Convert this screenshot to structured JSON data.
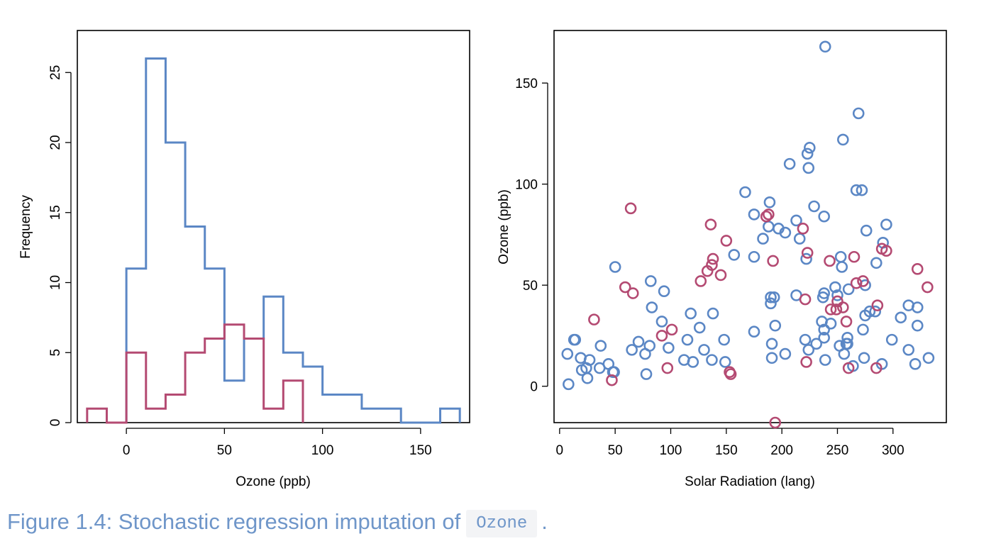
{
  "colors": {
    "observed": "#5b87c5",
    "imputed": "#b44a72",
    "caption": "#6f96c9"
  },
  "caption": {
    "prefix": "Figure 1.4: Stochastic regression imputation of",
    "code": "Ozone",
    "suffix": "."
  },
  "chart_data": [
    {
      "type": "histogram",
      "xlabel": "Ozone (ppb)",
      "ylabel": "Frequency",
      "xticks": [
        0,
        50,
        100,
        150
      ],
      "yticks": [
        0,
        5,
        10,
        15,
        20,
        25
      ],
      "xlim": [
        -25,
        175
      ],
      "ylim": [
        0,
        28
      ],
      "series": [
        {
          "color": "observed",
          "edges": [
            0,
            10,
            20,
            30,
            40,
            50,
            60,
            70,
            80,
            90,
            100,
            110,
            120,
            130,
            140,
            150,
            160,
            170
          ],
          "counts": [
            11,
            26,
            20,
            14,
            11,
            3,
            6,
            9,
            5,
            4,
            2,
            2,
            1,
            1,
            0,
            0,
            1
          ]
        },
        {
          "color": "imputed",
          "edges": [
            -20,
            -10,
            0,
            10,
            20,
            30,
            40,
            50,
            60,
            70,
            80,
            90
          ],
          "counts": [
            1,
            0,
            5,
            1,
            2,
            5,
            6,
            7,
            6,
            1,
            3
          ]
        }
      ]
    },
    {
      "type": "scatter",
      "xlabel": "Solar Radiation (lang)",
      "ylabel": "Ozone (ppb)",
      "xticks": [
        0,
        50,
        100,
        150,
        200,
        250,
        300
      ],
      "yticks": [
        0,
        50,
        100,
        150
      ],
      "xlim": [
        -5,
        348
      ],
      "ylim": [
        -18,
        176
      ],
      "series": [
        {
          "color": "observed",
          "points": [
            [
              7,
              16
            ],
            [
              8,
              1
            ],
            [
              13,
              23
            ],
            [
              14,
              23
            ],
            [
              19,
              14
            ],
            [
              20,
              8
            ],
            [
              24,
              9
            ],
            [
              25,
              4
            ],
            [
              27,
              13
            ],
            [
              36,
              9
            ],
            [
              37,
              20
            ],
            [
              44,
              11
            ],
            [
              48,
              7
            ],
            [
              49,
              7
            ],
            [
              50,
              59
            ],
            [
              65,
              18
            ],
            [
              71,
              22
            ],
            [
              77,
              16
            ],
            [
              78,
              6
            ],
            [
              81,
              20
            ],
            [
              82,
              52
            ],
            [
              83,
              39
            ],
            [
              92,
              32
            ],
            [
              94,
              47
            ],
            [
              98,
              19
            ],
            [
              112,
              13
            ],
            [
              115,
              23
            ],
            [
              118,
              36
            ],
            [
              120,
              12
            ],
            [
              126,
              29
            ],
            [
              130,
              18
            ],
            [
              137,
              13
            ],
            [
              138,
              36
            ],
            [
              148,
              23
            ],
            [
              149,
              12
            ],
            [
              157,
              65
            ],
            [
              167,
              96
            ],
            [
              175,
              85
            ],
            [
              175,
              64
            ],
            [
              175,
              27
            ],
            [
              183,
              73
            ],
            [
              188,
              79
            ],
            [
              189,
              91
            ],
            [
              190,
              41
            ],
            [
              190,
              44
            ],
            [
              191,
              21
            ],
            [
              191,
              14
            ],
            [
              193,
              44
            ],
            [
              194,
              30
            ],
            [
              197,
              78
            ],
            [
              203,
              16
            ],
            [
              203,
              76
            ],
            [
              207,
              110
            ],
            [
              213,
              45
            ],
            [
              213,
              82
            ],
            [
              216,
              73
            ],
            [
              221,
              23
            ],
            [
              222,
              63
            ],
            [
              223,
              115
            ],
            [
              224,
              108
            ],
            [
              224,
              18
            ],
            [
              225,
              118
            ],
            [
              229,
              89
            ],
            [
              231,
              21
            ],
            [
              236,
              32
            ],
            [
              237,
              44
            ],
            [
              238,
              84
            ],
            [
              238,
              46
            ],
            [
              238,
              28
            ],
            [
              238,
              24
            ],
            [
              239,
              168
            ],
            [
              239,
              13
            ],
            [
              244,
              31
            ],
            [
              248,
              49
            ],
            [
              250,
              45
            ],
            [
              252,
              20
            ],
            [
              253,
              64
            ],
            [
              254,
              59
            ],
            [
              255,
              122
            ],
            [
              256,
              16
            ],
            [
              258,
              21
            ],
            [
              259,
              24
            ],
            [
              259,
              21
            ],
            [
              260,
              48
            ],
            [
              264,
              10
            ],
            [
              267,
              97
            ],
            [
              269,
              135
            ],
            [
              272,
              97
            ],
            [
              273,
              28
            ],
            [
              274,
              14
            ],
            [
              275,
              35
            ],
            [
              275,
              50
            ],
            [
              276,
              77
            ],
            [
              279,
              37
            ],
            [
              284,
              37
            ],
            [
              285,
              61
            ],
            [
              290,
              11
            ],
            [
              291,
              71
            ],
            [
              294,
              80
            ],
            [
              299,
              23
            ],
            [
              307,
              34
            ],
            [
              314,
              40
            ],
            [
              314,
              18
            ],
            [
              320,
              11
            ],
            [
              322,
              39
            ],
            [
              322,
              30
            ],
            [
              332,
              14
            ]
          ]
        },
        {
          "color": "imputed",
          "points": [
            [
              31,
              33
            ],
            [
              47,
              3
            ],
            [
              59,
              49
            ],
            [
              64,
              88
            ],
            [
              66,
              46
            ],
            [
              92,
              25
            ],
            [
              97,
              9
            ],
            [
              101,
              28
            ],
            [
              127,
              52
            ],
            [
              133,
              57
            ],
            [
              136,
              80
            ],
            [
              137,
              60
            ],
            [
              138,
              63
            ],
            [
              145,
              55
            ],
            [
              150,
              72
            ],
            [
              153,
              7
            ],
            [
              154,
              6
            ],
            [
              186,
              84
            ],
            [
              188,
              85
            ],
            [
              192,
              62
            ],
            [
              194,
              -18
            ],
            [
              219,
              78
            ],
            [
              221,
              43
            ],
            [
              222,
              12
            ],
            [
              223,
              66
            ],
            [
              243,
              62
            ],
            [
              244,
              38
            ],
            [
              249,
              38
            ],
            [
              250,
              42
            ],
            [
              255,
              39
            ],
            [
              258,
              32
            ],
            [
              260,
              9
            ],
            [
              265,
              64
            ],
            [
              267,
              51
            ],
            [
              273,
              52
            ],
            [
              285,
              9
            ],
            [
              286,
              40
            ],
            [
              290,
              68
            ],
            [
              294,
              67
            ],
            [
              322,
              58
            ],
            [
              331,
              49
            ]
          ]
        }
      ]
    }
  ]
}
